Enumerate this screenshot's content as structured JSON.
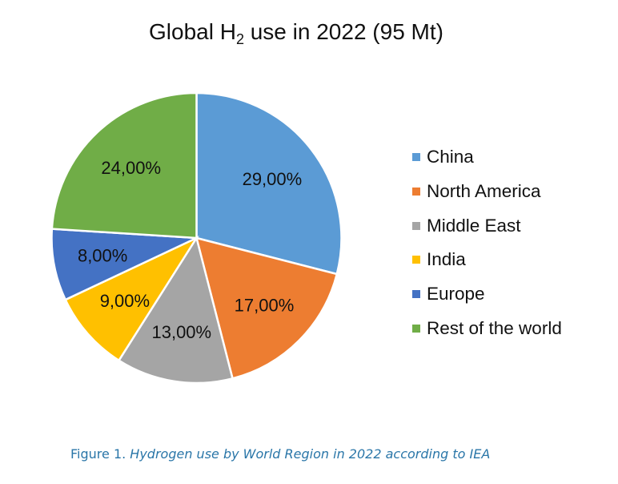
{
  "chart_data": {
    "type": "pie",
    "title": {
      "prefix": "Global H",
      "subscript": "2",
      "suffix": " use in 2022 (95 Mt)"
    },
    "categories": [
      "China",
      "North America",
      "Middle East",
      "India",
      "Europe",
      "Rest of the world"
    ],
    "values": [
      29,
      17,
      13,
      9,
      8,
      24
    ],
    "data_labels": [
      "29,00%",
      "17,00%",
      "13,00%",
      "9,00%",
      "8,00%",
      "24,00%"
    ],
    "colors": [
      "#5B9BD5",
      "#ED7D31",
      "#A5A5A5",
      "#FFC000",
      "#4472C4",
      "#70AD47"
    ],
    "legend_position": "right"
  },
  "caption": {
    "label": "Figure 1.",
    "text": "Hydrogen use by World Region in 2022 according to IEA"
  }
}
